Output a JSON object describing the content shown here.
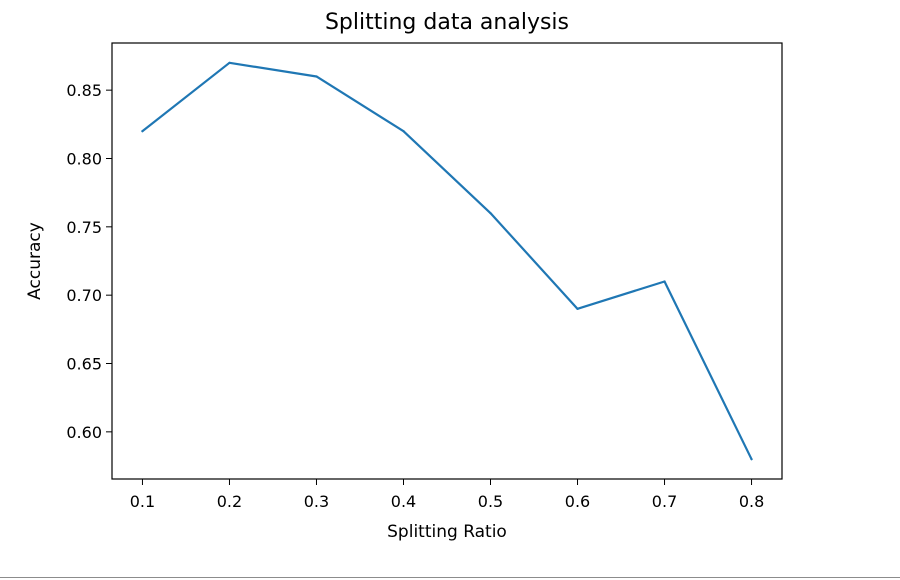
{
  "chart_data": {
    "type": "line",
    "title": "Splitting data analysis",
    "xlabel": "Splitting Ratio",
    "ylabel": "Accuracy",
    "x": [
      0.1,
      0.2,
      0.3,
      0.4,
      0.5,
      0.6,
      0.7,
      0.8
    ],
    "series": [
      {
        "values": [
          0.82,
          0.87,
          0.86,
          0.82,
          0.76,
          0.69,
          0.71,
          0.58
        ],
        "color": "#1f77b4"
      }
    ],
    "xticks": [
      "0.1",
      "0.2",
      "0.3",
      "0.4",
      "0.5",
      "0.6",
      "0.7",
      "0.8"
    ],
    "yticks": [
      "0.60",
      "0.65",
      "0.70",
      "0.75",
      "0.80",
      "0.85"
    ],
    "xlim": [
      0.065,
      0.835
    ],
    "ylim": [
      0.5655,
      0.8845
    ],
    "grid": false
  }
}
